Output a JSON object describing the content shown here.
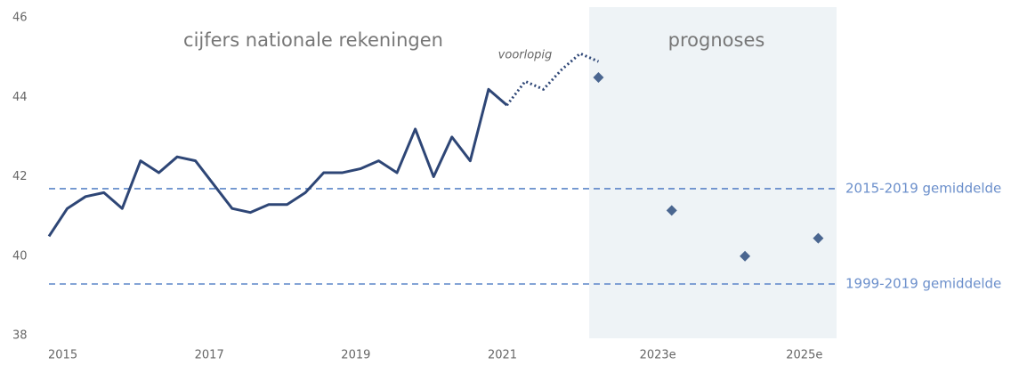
{
  "chart_data": {
    "type": "line",
    "annotations": [
      "cijfers nationale rekeningen",
      "prognoses",
      "voorlopig"
    ],
    "xlim": [
      2015,
      2025.75
    ],
    "ylim": [
      38,
      46
    ],
    "yticks": [
      38,
      40,
      42,
      44,
      46
    ],
    "xticks": [
      2015,
      2017,
      2019,
      2021,
      {
        "value": 2023,
        "label": "2023e"
      },
      {
        "value": 2025,
        "label": "2025e"
      }
    ],
    "shaded_region": [
      2022.375,
      2025.75
    ],
    "shade_color": "#eef3f6",
    "series": [
      {
        "style": "solid",
        "color": "#2e4676",
        "x": [
          2015,
          2015.25,
          2015.5,
          2015.75,
          2016,
          2016.25,
          2016.5,
          2016.75,
          2017,
          2017.25,
          2017.5,
          2017.75,
          2018,
          2018.25,
          2018.5,
          2018.75,
          2019,
          2019.25,
          2019.5,
          2019.75,
          2020,
          2020.25,
          2020.5,
          2020.75,
          2021,
          2021.25
        ],
        "values": [
          40.5,
          41.2,
          41.5,
          41.6,
          41.2,
          42.4,
          42.1,
          42.5,
          42.4,
          41.8,
          41.2,
          41.1,
          41.3,
          41.3,
          41.6,
          42.1,
          42.1,
          42.2,
          42.4,
          42.1,
          43.2,
          42.0,
          43.0,
          42.4,
          44.2,
          43.8
        ]
      },
      {
        "style": "dotted",
        "color": "#2e4676",
        "x": [
          2021.25,
          2021.5,
          2021.75,
          2022,
          2022.25,
          2022.5
        ],
        "values": [
          43.8,
          44.4,
          44.2,
          44.7,
          45.1,
          44.9
        ]
      },
      {
        "style": "markers",
        "color": "#4a6690",
        "x": [
          2022.5,
          2023.5,
          2024.5,
          2025.5
        ],
        "values": [
          44.5,
          41.15,
          40.0,
          40.45
        ]
      }
    ],
    "reference_lines": [
      {
        "value": 41.7,
        "label": "2015-2019 gemiddelde",
        "color": "#5b85c8"
      },
      {
        "value": 39.3,
        "label": "1999-2019 gemiddelde",
        "color": "#5b85c8"
      }
    ]
  }
}
